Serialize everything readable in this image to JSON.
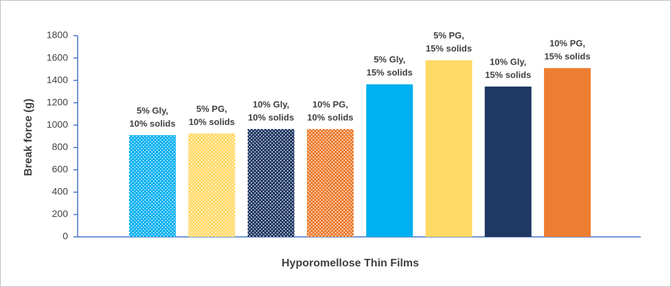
{
  "chart_data": {
    "type": "bar",
    "x_label": "Hyporomellose Thin Films",
    "y_label": "Break force (g)",
    "categories": [
      [
        "5% Gly,",
        "10% solids"
      ],
      [
        "5% PG,",
        "10% solids"
      ],
      [
        "10% Gly,",
        "10% solids"
      ],
      [
        "10% PG,",
        "10% solids"
      ],
      [
        "5% Gly,",
        "15% solids"
      ],
      [
        "5% PG,",
        "15% solids"
      ],
      [
        "10% Gly,",
        "15% solids"
      ],
      [
        "10% PG,",
        "15% solids"
      ]
    ],
    "values": [
      910,
      925,
      965,
      965,
      1365,
      1580,
      1345,
      1510
    ],
    "colors": [
      "#00b0f0",
      "#ffd966",
      "#1f3864",
      "#ed7d31",
      "#00b0f0",
      "#ffd966",
      "#1f3864",
      "#ed7d31"
    ],
    "patterned": [
      true,
      true,
      true,
      true,
      false,
      false,
      false,
      false
    ],
    "ylim": [
      0,
      1800
    ],
    "yticks": [
      0,
      200,
      400,
      600,
      800,
      1000,
      1200,
      1400,
      1600,
      1800
    ]
  }
}
